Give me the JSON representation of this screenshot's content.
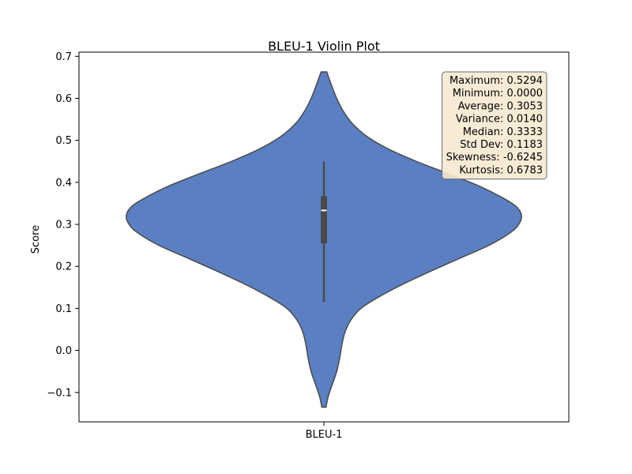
{
  "chart_data": {
    "type": "violin",
    "title": "BLEU-1 Violin Plot",
    "xlabel": "",
    "ylabel": "Score",
    "categories": [
      "BLEU-1"
    ],
    "ylim": [
      -0.17,
      0.71
    ],
    "yticks": [
      -0.1,
      0.0,
      0.1,
      0.2,
      0.3,
      0.4,
      0.5,
      0.6,
      0.7
    ],
    "ytick_labels": [
      "−0.1",
      "0.0",
      "0.1",
      "0.2",
      "0.3",
      "0.4",
      "0.5",
      "0.6",
      "0.7"
    ],
    "grid": false,
    "violin": {
      "color": "#5a7fc2",
      "edge_color": "#4a4a4a",
      "min": -0.135,
      "max": 0.663,
      "density": [
        [
          -0.135,
          0.03
        ],
        [
          -0.11,
          0.06
        ],
        [
          -0.08,
          0.12
        ],
        [
          -0.05,
          0.18
        ],
        [
          -0.02,
          0.22
        ],
        [
          0.01,
          0.25
        ],
        [
          0.04,
          0.29
        ],
        [
          0.07,
          0.37
        ],
        [
          0.1,
          0.52
        ],
        [
          0.13,
          0.8
        ],
        [
          0.16,
          1.14
        ],
        [
          0.19,
          1.52
        ],
        [
          0.22,
          1.92
        ],
        [
          0.25,
          2.32
        ],
        [
          0.28,
          2.62
        ],
        [
          0.3,
          2.74
        ],
        [
          0.32,
          2.78
        ],
        [
          0.34,
          2.72
        ],
        [
          0.36,
          2.55
        ],
        [
          0.39,
          2.2
        ],
        [
          0.42,
          1.76
        ],
        [
          0.45,
          1.3
        ],
        [
          0.48,
          0.9
        ],
        [
          0.51,
          0.6
        ],
        [
          0.54,
          0.4
        ],
        [
          0.57,
          0.27
        ],
        [
          0.6,
          0.18
        ],
        [
          0.63,
          0.11
        ],
        [
          0.663,
          0.04
        ]
      ]
    },
    "box": {
      "q1": 0.255,
      "median": 0.3333,
      "q3": 0.367,
      "whisker_low": 0.115,
      "whisker_high": 0.45,
      "color": "#4a4a4a",
      "median_color": "#ffffff"
    },
    "stats_box": {
      "placement": "top-right",
      "facecolor": "#f7e9d2",
      "lines": [
        "Maximum: 0.5294",
        "Minimum: 0.0000",
        "Average: 0.3053",
        "Variance: 0.0140",
        "Median: 0.3333",
        "Std Dev: 0.1183",
        "Skewness: -0.6245",
        "Kurtosis: 0.6783"
      ]
    }
  }
}
